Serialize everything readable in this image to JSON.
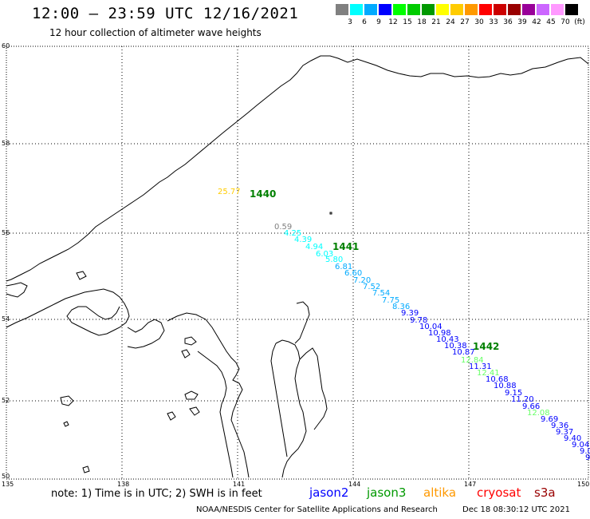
{
  "header": {
    "title": "12:00 – 23:59 UTC 12/16/2021",
    "subtitle": "12 hour collection of altimeter wave heights"
  },
  "color_scale": {
    "colors": [
      "#808080",
      "#00ffff",
      "#00aaff",
      "#0000ff",
      "#00ff00",
      "#00cc00",
      "#009900",
      "#ffff00",
      "#ffcc00",
      "#ff9900",
      "#ff0000",
      "#cc0000",
      "#990000",
      "#990099",
      "#cc66ff",
      "#ff99ff",
      "#000000"
    ],
    "labels": [
      "3",
      "6",
      "9",
      "12",
      "15",
      "18",
      "21",
      "24",
      "27",
      "30",
      "33",
      "36",
      "39",
      "42",
      "45",
      "70",
      "(ft)"
    ]
  },
  "axes": {
    "lat_labels": [
      "60",
      "58",
      "56",
      "54",
      "52",
      "50"
    ],
    "lon_labels": [
      "135",
      "138",
      "141",
      "144",
      "147",
      "150"
    ]
  },
  "measurements": [
    {
      "text": "25.77",
      "color": "#ffcc00"
    },
    {
      "text": "0.59",
      "color": "#808080"
    },
    {
      "text": "4.25",
      "color": "#00ffff"
    },
    {
      "text": "4.39",
      "color": "#00ffff"
    },
    {
      "text": "4.94",
      "color": "#00ffff"
    },
    {
      "text": "6.03",
      "color": "#00ffff"
    },
    {
      "text": "5.80",
      "color": "#00ffff"
    },
    {
      "text": "6.81",
      "color": "#00aaff"
    },
    {
      "text": "6.60",
      "color": "#00aaff"
    },
    {
      "text": "7.20",
      "color": "#00aaff"
    },
    {
      "text": "7.52",
      "color": "#00aaff"
    },
    {
      "text": "7.54",
      "color": "#00aaff"
    },
    {
      "text": "7.75",
      "color": "#00aaff"
    },
    {
      "text": "8.36",
      "color": "#00aaff"
    },
    {
      "text": "9.39",
      "color": "#0000ff"
    },
    {
      "text": "9.78",
      "color": "#0000ff"
    },
    {
      "text": "10.04",
      "color": "#0000ff"
    },
    {
      "text": "10.98",
      "color": "#0000ff"
    },
    {
      "text": "10.43",
      "color": "#0000ff"
    },
    {
      "text": "10.38",
      "color": "#0000ff"
    },
    {
      "text": "10.87",
      "color": "#0000ff"
    },
    {
      "text": "12.84",
      "color": "#66ff66"
    },
    {
      "text": "11.31",
      "color": "#0000ff"
    },
    {
      "text": "12.41",
      "color": "#66ff66"
    },
    {
      "text": "10.68",
      "color": "#0000ff"
    },
    {
      "text": "10.88",
      "color": "#0000ff"
    },
    {
      "text": "9.15",
      "color": "#0000ff"
    },
    {
      "text": "11.20",
      "color": "#0000ff"
    },
    {
      "text": "9.66",
      "color": "#0000ff"
    },
    {
      "text": "12.08",
      "color": "#66ff66"
    },
    {
      "text": "9.69",
      "color": "#0000ff"
    },
    {
      "text": "9.36",
      "color": "#0000ff"
    },
    {
      "text": "9.37",
      "color": "#0000ff"
    },
    {
      "text": "9.40",
      "color": "#0000ff"
    },
    {
      "text": "9.04",
      "color": "#0000ff"
    },
    {
      "text": "9.0",
      "color": "#0000ff"
    },
    {
      "text": "9",
      "color": "#0000ff"
    }
  ],
  "time_labels": [
    "1440",
    "1441",
    "1442"
  ],
  "footer": {
    "note": "note: 1) Time is in UTC; 2) SWH is in feet",
    "satellites": [
      {
        "name": "jason2",
        "color": "#0000ff"
      },
      {
        "name": "jason3",
        "color": "#009900"
      },
      {
        "name": "altika",
        "color": "#ff9900"
      },
      {
        "name": "cryosat",
        "color": "#ff0000"
      },
      {
        "name": "s3a",
        "color": "#990000"
      }
    ],
    "credit": "NOAA/NESDIS Center for Satellite Applications and Research",
    "timestamp": "Dec 18 08:30:12 UTC 2021"
  }
}
